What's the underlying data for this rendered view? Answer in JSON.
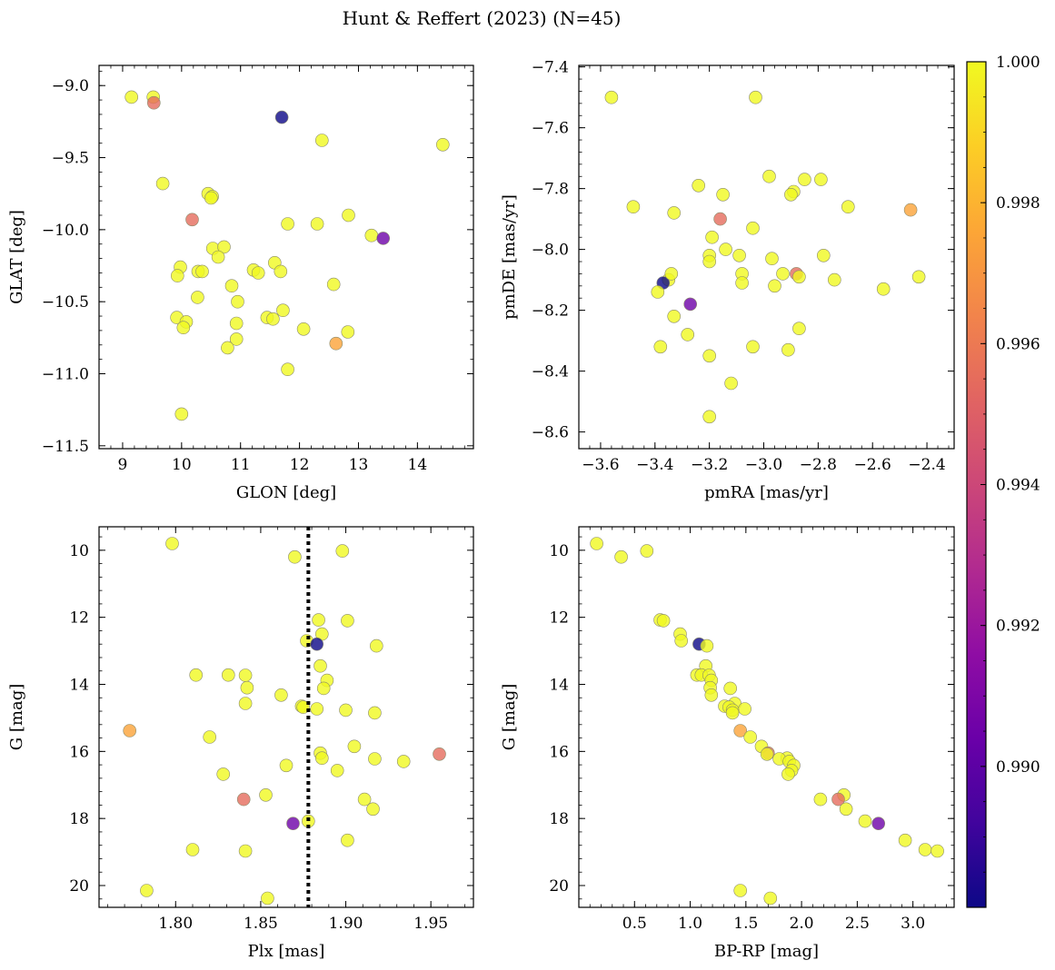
{
  "figure": {
    "title": "Hunt & Reffert (2023) (N=45)"
  },
  "colorbar": {
    "colormap": "plasma",
    "range": [
      0.988,
      1.0
    ],
    "ticks": [
      0.99,
      0.992,
      0.994,
      0.996,
      0.998,
      1.0
    ],
    "tick_labels": [
      "0.990",
      "0.992",
      "0.994",
      "0.996",
      "0.998",
      "1.000"
    ]
  },
  "chart_data": [
    {
      "type": "scatter",
      "xlabel": "GLON [deg]",
      "ylabel": "GLAT [deg]",
      "xlim": [
        8.6,
        14.95
      ],
      "ylim": [
        -11.52,
        -8.86
      ],
      "xticks": [
        9,
        10,
        11,
        12,
        13,
        14
      ],
      "xtick_labels": [
        "9",
        "10",
        "11",
        "12",
        "13",
        "14"
      ],
      "yticks": [
        -9.0,
        -9.5,
        -10.0,
        -10.5,
        -11.0,
        -11.5
      ],
      "ytick_labels": [
        "−9.0",
        "−9.5",
        "−10.0",
        "−10.5",
        "−11.0",
        "−11.5"
      ],
      "points": [
        {
          "x": 9.15,
          "y": -9.08,
          "c": 1.0
        },
        {
          "x": 9.52,
          "y": -9.08,
          "c": 1.0
        },
        {
          "x": 9.53,
          "y": -9.12,
          "c": 0.9955
        },
        {
          "x": 11.7,
          "y": -9.22,
          "c": 0.988
        },
        {
          "x": 12.38,
          "y": -9.38,
          "c": 1.0
        },
        {
          "x": 14.43,
          "y": -9.41,
          "c": 1.0
        },
        {
          "x": 9.68,
          "y": -9.68,
          "c": 1.0
        },
        {
          "x": 10.45,
          "y": -9.75,
          "c": 1.0
        },
        {
          "x": 10.52,
          "y": -9.77,
          "c": 1.0
        },
        {
          "x": 10.5,
          "y": -9.78,
          "c": 1.0
        },
        {
          "x": 10.18,
          "y": -9.93,
          "c": 0.9955
        },
        {
          "x": 12.83,
          "y": -9.9,
          "c": 1.0
        },
        {
          "x": 11.8,
          "y": -9.96,
          "c": 1.0
        },
        {
          "x": 12.3,
          "y": -9.96,
          "c": 1.0
        },
        {
          "x": 13.22,
          "y": -10.04,
          "c": 1.0
        },
        {
          "x": 13.42,
          "y": -10.06,
          "c": 0.9905
        },
        {
          "x": 10.53,
          "y": -10.13,
          "c": 1.0
        },
        {
          "x": 10.72,
          "y": -10.12,
          "c": 1.0
        },
        {
          "x": 10.62,
          "y": -10.19,
          "c": 1.0
        },
        {
          "x": 11.58,
          "y": -10.23,
          "c": 1.0
        },
        {
          "x": 9.98,
          "y": -10.26,
          "c": 1.0
        },
        {
          "x": 9.93,
          "y": -10.32,
          "c": 1.0
        },
        {
          "x": 10.28,
          "y": -10.29,
          "c": 1.0
        },
        {
          "x": 10.35,
          "y": -10.29,
          "c": 1.0
        },
        {
          "x": 11.22,
          "y": -10.28,
          "c": 1.0
        },
        {
          "x": 11.3,
          "y": -10.3,
          "c": 1.0
        },
        {
          "x": 11.68,
          "y": -10.29,
          "c": 1.0
        },
        {
          "x": 10.85,
          "y": -10.39,
          "c": 1.0
        },
        {
          "x": 12.58,
          "y": -10.38,
          "c": 1.0
        },
        {
          "x": 10.27,
          "y": -10.47,
          "c": 1.0
        },
        {
          "x": 10.95,
          "y": -10.5,
          "c": 1.0
        },
        {
          "x": 11.72,
          "y": -10.56,
          "c": 1.0
        },
        {
          "x": 9.92,
          "y": -10.61,
          "c": 1.0
        },
        {
          "x": 11.45,
          "y": -10.61,
          "c": 1.0
        },
        {
          "x": 11.55,
          "y": -10.62,
          "c": 1.0
        },
        {
          "x": 10.08,
          "y": -10.64,
          "c": 1.0
        },
        {
          "x": 10.93,
          "y": -10.65,
          "c": 1.0
        },
        {
          "x": 10.03,
          "y": -10.68,
          "c": 1.0
        },
        {
          "x": 12.07,
          "y": -10.69,
          "c": 1.0
        },
        {
          "x": 12.82,
          "y": -10.71,
          "c": 1.0
        },
        {
          "x": 10.93,
          "y": -10.76,
          "c": 1.0
        },
        {
          "x": 12.62,
          "y": -10.79,
          "c": 0.9975
        },
        {
          "x": 10.78,
          "y": -10.82,
          "c": 1.0
        },
        {
          "x": 11.8,
          "y": -10.97,
          "c": 1.0
        },
        {
          "x": 10.0,
          "y": -11.28,
          "c": 1.0
        }
      ]
    },
    {
      "type": "scatter",
      "xlabel": "pmRA [mas/yr]",
      "ylabel": "pmDE [mas/yr]",
      "xlim": [
        -3.68,
        -2.3
      ],
      "ylim": [
        -8.655,
        -7.395
      ],
      "xticks": [
        -3.6,
        -3.4,
        -3.2,
        -3.0,
        -2.8,
        -2.6,
        -2.4
      ],
      "xtick_labels": [
        "−3.6",
        "−3.4",
        "−3.2",
        "−3.0",
        "−2.8",
        "−2.6",
        "−2.4"
      ],
      "yticks": [
        -7.4,
        -7.6,
        -7.8,
        -8.0,
        -8.2,
        -8.4,
        -8.6
      ],
      "ytick_labels": [
        "−7.4",
        "−7.6",
        "−7.8",
        "−8.0",
        "−8.2",
        "−8.4",
        "−8.6"
      ],
      "points": [
        {
          "x": -3.56,
          "y": -7.5,
          "c": 1.0
        },
        {
          "x": -3.03,
          "y": -7.5,
          "c": 1.0
        },
        {
          "x": -2.98,
          "y": -7.76,
          "c": 1.0
        },
        {
          "x": -2.85,
          "y": -7.77,
          "c": 1.0
        },
        {
          "x": -2.79,
          "y": -7.77,
          "c": 1.0
        },
        {
          "x": -3.24,
          "y": -7.79,
          "c": 1.0
        },
        {
          "x": -2.89,
          "y": -7.81,
          "c": 1.0
        },
        {
          "x": -2.9,
          "y": -7.82,
          "c": 1.0
        },
        {
          "x": -3.15,
          "y": -7.82,
          "c": 1.0
        },
        {
          "x": -2.69,
          "y": -7.86,
          "c": 1.0
        },
        {
          "x": -3.48,
          "y": -7.86,
          "c": 1.0
        },
        {
          "x": -2.46,
          "y": -7.87,
          "c": 0.9975
        },
        {
          "x": -3.33,
          "y": -7.88,
          "c": 1.0
        },
        {
          "x": -3.16,
          "y": -7.9,
          "c": 0.9955
        },
        {
          "x": -3.04,
          "y": -7.93,
          "c": 1.0
        },
        {
          "x": -3.19,
          "y": -7.96,
          "c": 1.0
        },
        {
          "x": -3.14,
          "y": -8.0,
          "c": 1.0
        },
        {
          "x": -3.2,
          "y": -8.02,
          "c": 1.0
        },
        {
          "x": -3.09,
          "y": -8.02,
          "c": 1.0
        },
        {
          "x": -2.97,
          "y": -8.03,
          "c": 1.0
        },
        {
          "x": -2.78,
          "y": -8.02,
          "c": 1.0
        },
        {
          "x": -3.2,
          "y": -8.04,
          "c": 1.0
        },
        {
          "x": -2.88,
          "y": -8.08,
          "c": 0.9955
        },
        {
          "x": -2.93,
          "y": -8.08,
          "c": 1.0
        },
        {
          "x": -3.08,
          "y": -8.08,
          "c": 1.0
        },
        {
          "x": -2.87,
          "y": -8.09,
          "c": 1.0
        },
        {
          "x": -2.43,
          "y": -8.09,
          "c": 1.0
        },
        {
          "x": -3.35,
          "y": -8.1,
          "c": 1.0
        },
        {
          "x": -2.74,
          "y": -8.1,
          "c": 1.0
        },
        {
          "x": -3.37,
          "y": -8.11,
          "c": 0.988
        },
        {
          "x": -3.08,
          "y": -8.11,
          "c": 1.0
        },
        {
          "x": -2.96,
          "y": -8.12,
          "c": 1.0
        },
        {
          "x": -2.56,
          "y": -8.13,
          "c": 1.0
        },
        {
          "x": -3.39,
          "y": -8.14,
          "c": 1.0
        },
        {
          "x": -3.27,
          "y": -8.18,
          "c": 0.9905
        },
        {
          "x": -3.33,
          "y": -8.22,
          "c": 1.0
        },
        {
          "x": -2.87,
          "y": -8.26,
          "c": 1.0
        },
        {
          "x": -3.28,
          "y": -8.28,
          "c": 1.0
        },
        {
          "x": -3.04,
          "y": -8.32,
          "c": 1.0
        },
        {
          "x": -3.38,
          "y": -8.32,
          "c": 1.0
        },
        {
          "x": -2.91,
          "y": -8.33,
          "c": 1.0
        },
        {
          "x": -3.2,
          "y": -8.35,
          "c": 1.0
        },
        {
          "x": -3.12,
          "y": -8.44,
          "c": 1.0
        },
        {
          "x": -3.2,
          "y": -8.55,
          "c": 1.0
        },
        {
          "x": -3.34,
          "y": -8.08,
          "c": 1.0
        }
      ]
    },
    {
      "type": "scatter",
      "xlabel": "Plx [mas]",
      "ylabel": "G [mag]",
      "xlim": [
        1.755,
        1.975
      ],
      "ylim": [
        20.65,
        9.3
      ],
      "y_inverted": true,
      "xticks": [
        1.8,
        1.85,
        1.9,
        1.95
      ],
      "xtick_labels": [
        "1.80",
        "1.85",
        "1.90",
        "1.95"
      ],
      "yticks": [
        10,
        12,
        14,
        16,
        18,
        20
      ],
      "ytick_labels": [
        "10",
        "12",
        "14",
        "16",
        "18",
        "20"
      ],
      "vline": {
        "x": 1.878,
        "style": "dotted",
        "color": "#000000"
      },
      "points": [
        {
          "x": 1.798,
          "y": 9.8,
          "c": 1.0
        },
        {
          "x": 1.898,
          "y": 10.02,
          "c": 1.0
        },
        {
          "x": 1.87,
          "y": 10.2,
          "c": 1.0
        },
        {
          "x": 1.884,
          "y": 12.08,
          "c": 1.0
        },
        {
          "x": 1.901,
          "y": 12.1,
          "c": 1.0
        },
        {
          "x": 1.886,
          "y": 12.5,
          "c": 1.0
        },
        {
          "x": 1.877,
          "y": 12.7,
          "c": 1.0
        },
        {
          "x": 1.883,
          "y": 12.8,
          "c": 0.988
        },
        {
          "x": 1.918,
          "y": 12.85,
          "c": 1.0
        },
        {
          "x": 1.885,
          "y": 13.45,
          "c": 1.0
        },
        {
          "x": 1.812,
          "y": 13.72,
          "c": 1.0
        },
        {
          "x": 1.831,
          "y": 13.72,
          "c": 1.0
        },
        {
          "x": 1.841,
          "y": 13.73,
          "c": 1.0
        },
        {
          "x": 1.889,
          "y": 13.88,
          "c": 1.0
        },
        {
          "x": 1.842,
          "y": 14.1,
          "c": 1.0
        },
        {
          "x": 1.887,
          "y": 14.12,
          "c": 1.0
        },
        {
          "x": 1.862,
          "y": 14.32,
          "c": 1.0
        },
        {
          "x": 1.841,
          "y": 14.57,
          "c": 1.0
        },
        {
          "x": 1.874,
          "y": 14.65,
          "c": 1.0
        },
        {
          "x": 1.875,
          "y": 14.68,
          "c": 1.0
        },
        {
          "x": 1.883,
          "y": 14.73,
          "c": 1.0
        },
        {
          "x": 1.9,
          "y": 14.77,
          "c": 1.0
        },
        {
          "x": 1.917,
          "y": 14.85,
          "c": 1.0
        },
        {
          "x": 1.773,
          "y": 15.38,
          "c": 0.9975
        },
        {
          "x": 1.82,
          "y": 15.57,
          "c": 1.0
        },
        {
          "x": 1.905,
          "y": 15.85,
          "c": 1.0
        },
        {
          "x": 1.885,
          "y": 16.05,
          "c": 1.0
        },
        {
          "x": 1.955,
          "y": 16.08,
          "c": 0.9955
        },
        {
          "x": 1.886,
          "y": 16.2,
          "c": 1.0
        },
        {
          "x": 1.917,
          "y": 16.22,
          "c": 1.0
        },
        {
          "x": 1.934,
          "y": 16.3,
          "c": 1.0
        },
        {
          "x": 1.865,
          "y": 16.42,
          "c": 1.0
        },
        {
          "x": 1.895,
          "y": 16.57,
          "c": 1.0
        },
        {
          "x": 1.828,
          "y": 16.68,
          "c": 1.0
        },
        {
          "x": 1.853,
          "y": 17.3,
          "c": 1.0
        },
        {
          "x": 1.911,
          "y": 17.43,
          "c": 1.0
        },
        {
          "x": 1.84,
          "y": 17.43,
          "c": 0.9955
        },
        {
          "x": 1.916,
          "y": 17.72,
          "c": 1.0
        },
        {
          "x": 1.878,
          "y": 18.08,
          "c": 1.0
        },
        {
          "x": 1.869,
          "y": 18.15,
          "c": 0.9905
        },
        {
          "x": 1.901,
          "y": 18.65,
          "c": 1.0
        },
        {
          "x": 1.81,
          "y": 18.93,
          "c": 1.0
        },
        {
          "x": 1.841,
          "y": 18.97,
          "c": 1.0
        },
        {
          "x": 1.783,
          "y": 20.15,
          "c": 1.0
        },
        {
          "x": 1.854,
          "y": 20.38,
          "c": 1.0
        }
      ]
    },
    {
      "type": "scatter",
      "xlabel": "BP-RP [mag]",
      "ylabel": "G [mag]",
      "xlim": [
        0.0,
        3.37
      ],
      "ylim": [
        20.65,
        9.3
      ],
      "y_inverted": true,
      "xticks": [
        0.5,
        1.0,
        1.5,
        2.0,
        2.5,
        3.0
      ],
      "xtick_labels": [
        "0.5",
        "1.0",
        "1.5",
        "2.0",
        "2.5",
        "3.0"
      ],
      "yticks": [
        10,
        12,
        14,
        16,
        18,
        20
      ],
      "ytick_labels": [
        "10",
        "12",
        "14",
        "16",
        "18",
        "20"
      ],
      "points": [
        {
          "x": 0.16,
          "y": 9.8,
          "c": 1.0
        },
        {
          "x": 0.38,
          "y": 10.2,
          "c": 1.0
        },
        {
          "x": 0.61,
          "y": 10.02,
          "c": 1.0
        },
        {
          "x": 0.73,
          "y": 12.08,
          "c": 1.0
        },
        {
          "x": 0.76,
          "y": 12.1,
          "c": 1.0
        },
        {
          "x": 0.91,
          "y": 12.5,
          "c": 1.0
        },
        {
          "x": 0.92,
          "y": 12.7,
          "c": 1.0
        },
        {
          "x": 1.08,
          "y": 12.8,
          "c": 0.988
        },
        {
          "x": 1.15,
          "y": 12.85,
          "c": 1.0
        },
        {
          "x": 1.14,
          "y": 13.45,
          "c": 1.0
        },
        {
          "x": 1.06,
          "y": 13.72,
          "c": 1.0
        },
        {
          "x": 1.1,
          "y": 13.72,
          "c": 1.0
        },
        {
          "x": 1.17,
          "y": 13.73,
          "c": 1.0
        },
        {
          "x": 1.19,
          "y": 13.88,
          "c": 1.0
        },
        {
          "x": 1.18,
          "y": 14.1,
          "c": 1.0
        },
        {
          "x": 1.36,
          "y": 14.12,
          "c": 1.0
        },
        {
          "x": 1.19,
          "y": 14.32,
          "c": 1.0
        },
        {
          "x": 1.4,
          "y": 14.57,
          "c": 1.0
        },
        {
          "x": 1.31,
          "y": 14.65,
          "c": 1.0
        },
        {
          "x": 1.35,
          "y": 14.68,
          "c": 1.0
        },
        {
          "x": 1.49,
          "y": 14.73,
          "c": 1.0
        },
        {
          "x": 1.38,
          "y": 14.77,
          "c": 1.0
        },
        {
          "x": 1.38,
          "y": 14.85,
          "c": 1.0
        },
        {
          "x": 1.45,
          "y": 15.38,
          "c": 0.9975
        },
        {
          "x": 1.54,
          "y": 15.57,
          "c": 1.0
        },
        {
          "x": 1.64,
          "y": 15.85,
          "c": 1.0
        },
        {
          "x": 1.7,
          "y": 16.05,
          "c": 0.9955
        },
        {
          "x": 1.69,
          "y": 16.08,
          "c": 1.0
        },
        {
          "x": 1.87,
          "y": 16.2,
          "c": 1.0
        },
        {
          "x": 1.8,
          "y": 16.22,
          "c": 1.0
        },
        {
          "x": 1.89,
          "y": 16.3,
          "c": 1.0
        },
        {
          "x": 1.93,
          "y": 16.42,
          "c": 1.0
        },
        {
          "x": 1.91,
          "y": 16.57,
          "c": 1.0
        },
        {
          "x": 1.88,
          "y": 16.68,
          "c": 1.0
        },
        {
          "x": 2.38,
          "y": 17.3,
          "c": 1.0
        },
        {
          "x": 2.17,
          "y": 17.43,
          "c": 1.0
        },
        {
          "x": 2.33,
          "y": 17.43,
          "c": 0.9955
        },
        {
          "x": 2.4,
          "y": 17.72,
          "c": 1.0
        },
        {
          "x": 2.57,
          "y": 18.08,
          "c": 1.0
        },
        {
          "x": 2.69,
          "y": 18.15,
          "c": 0.9905
        },
        {
          "x": 2.93,
          "y": 18.65,
          "c": 1.0
        },
        {
          "x": 3.11,
          "y": 18.93,
          "c": 1.0
        },
        {
          "x": 3.22,
          "y": 18.97,
          "c": 1.0
        },
        {
          "x": 1.45,
          "y": 20.15,
          "c": 1.0
        },
        {
          "x": 1.72,
          "y": 20.38,
          "c": 1.0
        }
      ]
    }
  ]
}
